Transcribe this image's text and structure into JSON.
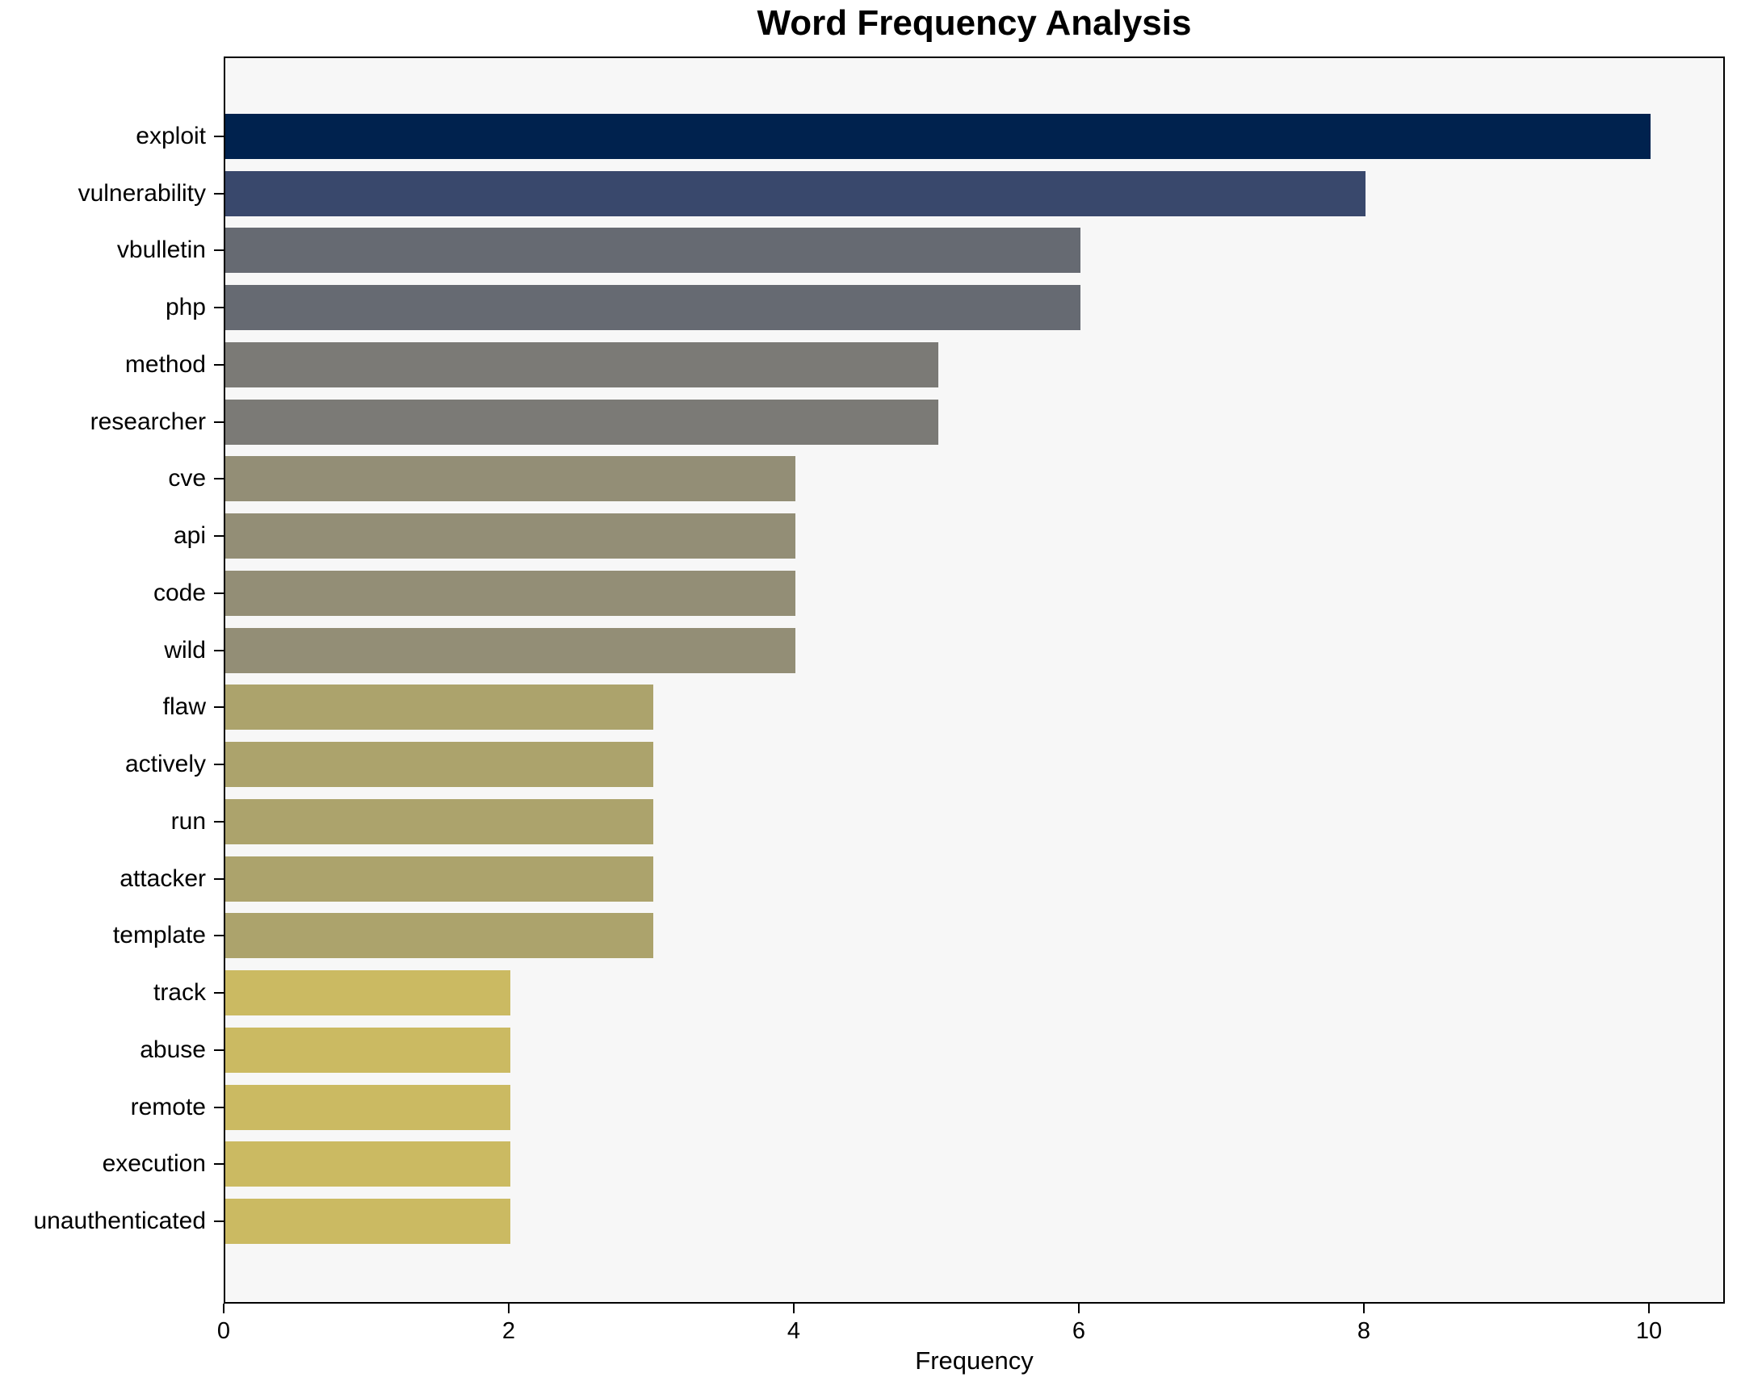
{
  "chart": {
    "title": "Word Frequency Analysis",
    "xlabel": "Frequency"
  },
  "chart_data": {
    "type": "bar",
    "orientation": "horizontal",
    "title": "Word Frequency Analysis",
    "xlabel": "Frequency",
    "ylabel": "",
    "categories": [
      "exploit",
      "vulnerability",
      "vbulletin",
      "php",
      "method",
      "researcher",
      "cve",
      "api",
      "code",
      "wild",
      "flaw",
      "actively",
      "run",
      "attacker",
      "template",
      "track",
      "abuse",
      "remote",
      "execution",
      "unauthenticated"
    ],
    "values": [
      10,
      8,
      6,
      6,
      5,
      5,
      4,
      4,
      4,
      4,
      3,
      3,
      3,
      3,
      3,
      2,
      2,
      2,
      2,
      2
    ],
    "bar_colors": [
      "#00224e",
      "#39486c",
      "#666a72",
      "#666a72",
      "#7b7a76",
      "#7b7a76",
      "#938e76",
      "#938e76",
      "#938e76",
      "#938e76",
      "#aca36c",
      "#aca36c",
      "#aca36c",
      "#aca36c",
      "#aca36c",
      "#cbba62",
      "#cbba62",
      "#cbba62",
      "#cbba62",
      "#cbba62"
    ],
    "xlim": [
      0,
      10.53
    ],
    "x_ticks": [
      0,
      2,
      4,
      6,
      8,
      10
    ],
    "grid": false,
    "legend": null,
    "plot_background": "#f7f7f7",
    "figure_background": "#ffffff",
    "axis_border_color": "#000000",
    "text_color": "#000000"
  }
}
